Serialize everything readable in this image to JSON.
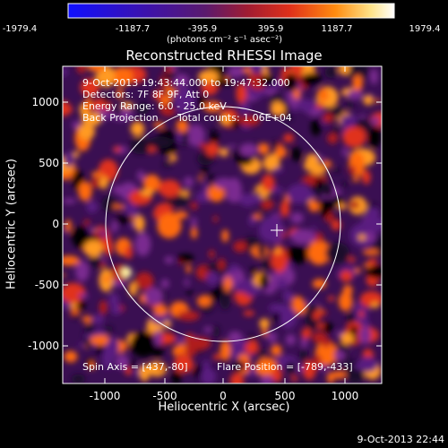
{
  "colorbar": {
    "ticks": [
      "-1979.4",
      "-1187.7",
      "-395.9",
      "395.9",
      "1187.7",
      "1979.4"
    ],
    "units": "(photons cm⁻² s⁻¹ asec⁻²)",
    "colors": [
      "#1a1aff",
      "#3a10b0",
      "#5a1a7a",
      "#9a1e3a",
      "#e0301a",
      "#ff8a10",
      "#ffe070",
      "#ffffff"
    ]
  },
  "image": {
    "title": "Reconstructed RHESSI Image",
    "time_range": "9-Oct-2013 19:43:44.000 to 19:47:32.000",
    "detectors": "Detectors: 7F 8F 9F, Att 0",
    "energy_range": "Energy Range: 6.0 - 25.0 keV",
    "method": "Back Projection",
    "total_counts": "Total counts: 1.06E+04",
    "spin_axis": "Spin Axis = [437,-80]",
    "flare_position": "Flare Position = [-789,-433]",
    "xlabel": "Heliocentric X (arcsec)",
    "ylabel": "Heliocentric Y (arcsec)",
    "xticks": [
      "-1000",
      "-500",
      "0",
      "500",
      "1000"
    ],
    "yticks": [
      "1000",
      "500",
      "0",
      "-500",
      "-1000"
    ],
    "xlim": [
      -1260,
      1300
    ],
    "ylim": [
      -1300,
      1270
    ],
    "solar_limb_radius_arcsec": 960
  },
  "footer": {
    "timestamp": "9-Oct-2013 22:44"
  }
}
